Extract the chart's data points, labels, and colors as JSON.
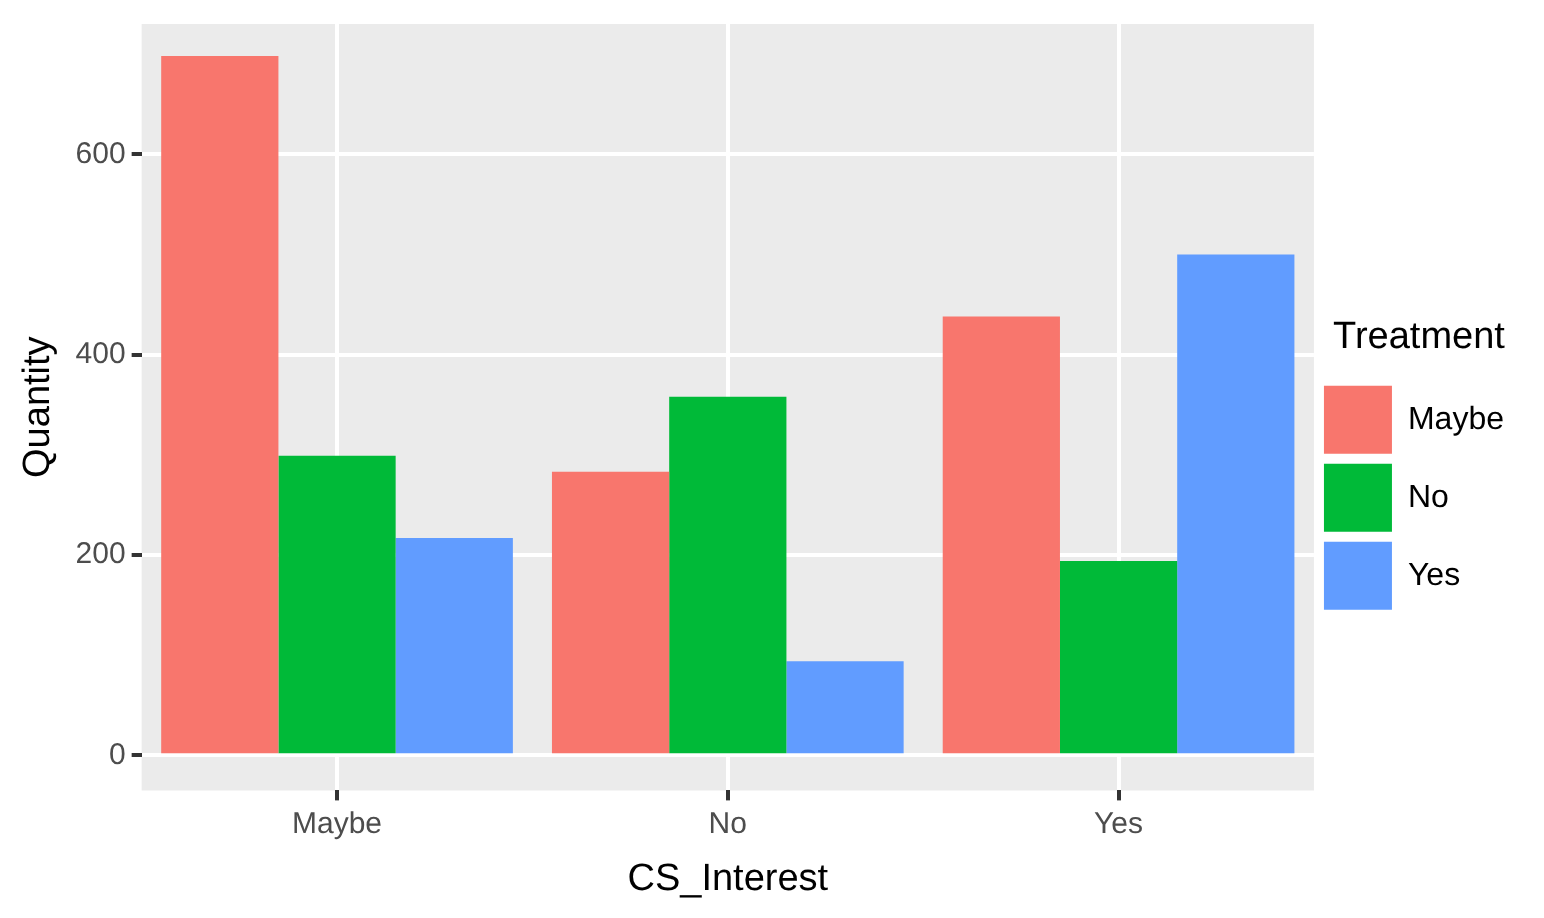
{
  "chart_data": {
    "type": "bar",
    "xlabel": "CS_Interest",
    "ylabel": "Quantity",
    "legend_title": "Treatment",
    "categories": [
      "Maybe",
      "No",
      "Yes"
    ],
    "series": [
      {
        "name": "Maybe",
        "color": "#f8766d",
        "values": [
          698,
          283,
          438
        ]
      },
      {
        "name": "No",
        "color": "#00ba38",
        "values": [
          299,
          358,
          194
        ]
      },
      {
        "name": "Yes",
        "color": "#619cff",
        "values": [
          217,
          94,
          500
        ]
      }
    ],
    "ylim": [
      -35,
      730
    ],
    "yticks": [
      0,
      200,
      400,
      600
    ],
    "grid": true,
    "legend": "right"
  }
}
